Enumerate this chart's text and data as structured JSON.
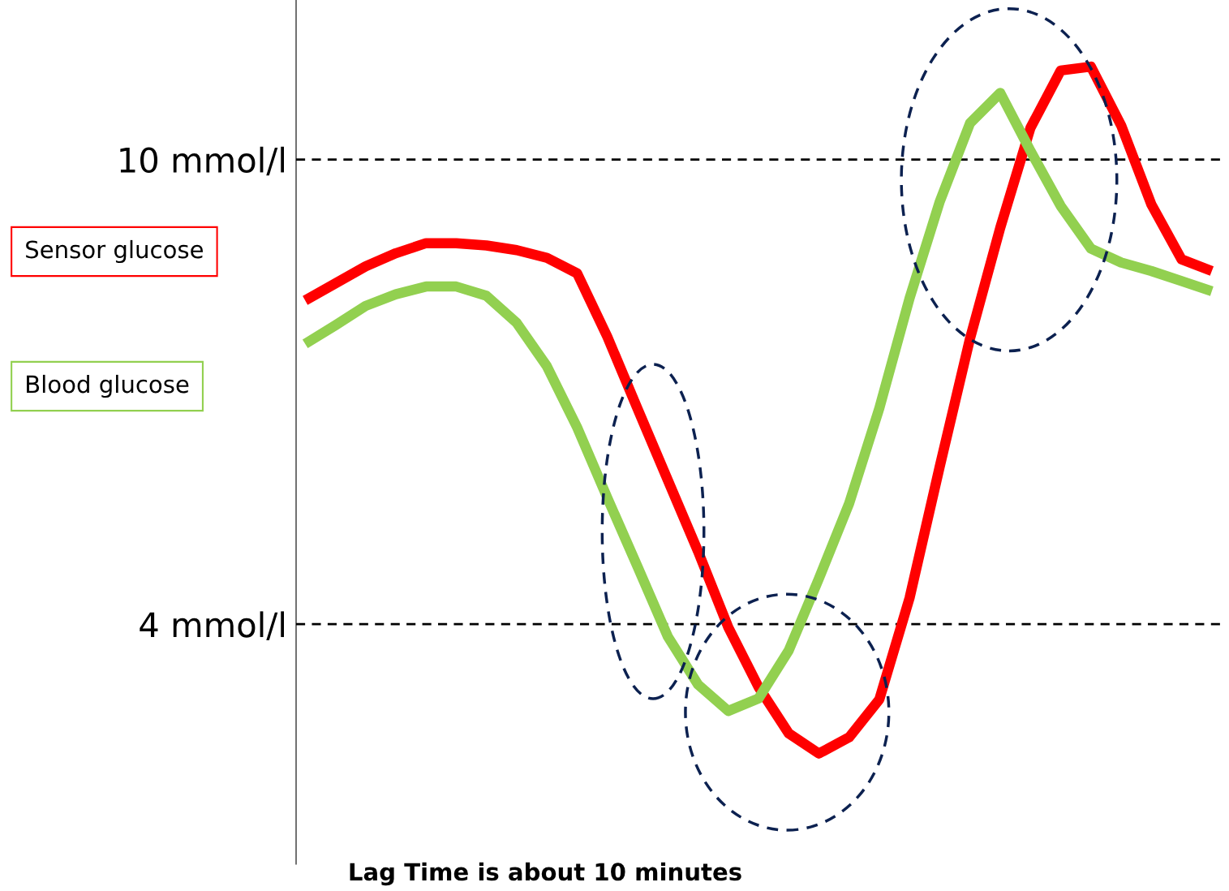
{
  "chart_data": {
    "type": "line",
    "categories": [
      null,
      null,
      null,
      null,
      null,
      null,
      null,
      null,
      null,
      null,
      null,
      null,
      null,
      null,
      null,
      null,
      null,
      null,
      null,
      null,
      null,
      null,
      null,
      null,
      null,
      null,
      null,
      null,
      null,
      null,
      null
    ],
    "series": [
      {
        "name": "Sensor glucose",
        "color": "#ff0000",
        "values": [
          8.18,
          8.4,
          8.62,
          8.79,
          8.92,
          8.92,
          8.89,
          8.83,
          8.73,
          8.53,
          7.71,
          6.78,
          5.86,
          4.94,
          3.96,
          3.19,
          2.59,
          2.33,
          2.54,
          3.03,
          4.34,
          6.04,
          7.69,
          9.12,
          10.41,
          11.15,
          11.2,
          10.44,
          9.42,
          8.71,
          8.56
        ]
      },
      {
        "name": "Blood glucose",
        "color": "#92d050",
        "values": [
          7.62,
          7.86,
          8.11,
          8.26,
          8.36,
          8.36,
          8.24,
          7.89,
          7.33,
          6.54,
          5.63,
          4.74,
          3.84,
          3.22,
          2.88,
          3.04,
          3.66,
          4.59,
          5.56,
          6.79,
          8.21,
          9.46,
          10.47,
          10.86,
          10.11,
          9.4,
          8.85,
          8.67,
          8.56,
          8.43,
          8.3
        ]
      }
    ],
    "ylim": [
      0.9,
      12.06
    ],
    "yticks": [
      {
        "value": 10,
        "label": "10 mmol/l"
      },
      {
        "value": 4,
        "label": "4 mmol/l"
      }
    ],
    "ref_lines": [
      {
        "axis": "y",
        "value": 10,
        "color": "#000000",
        "line_style": "dashed"
      },
      {
        "axis": "y",
        "value": 4,
        "color": "#000000",
        "line_style": "dashed"
      }
    ],
    "tick_labels": "y",
    "legend": "left",
    "grid": false,
    "annotations": [
      "Lag Time is about 10 minutes"
    ]
  }
}
